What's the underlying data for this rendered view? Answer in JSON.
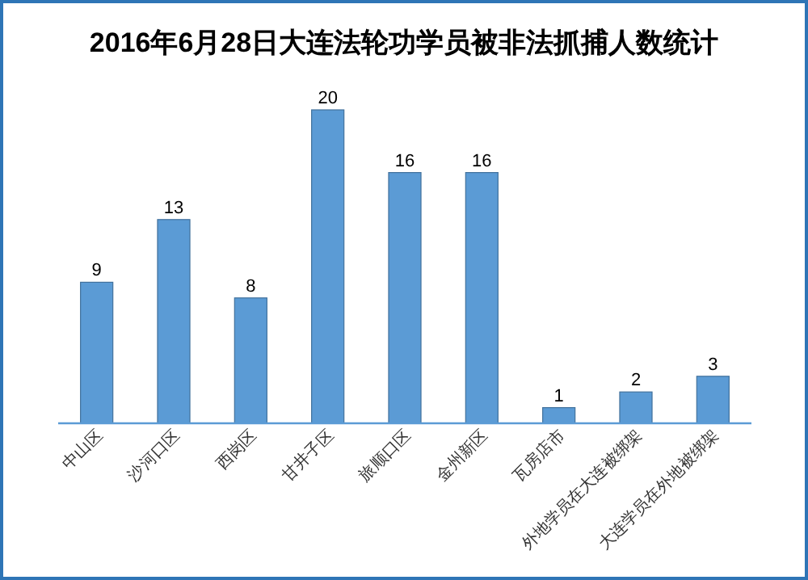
{
  "chart_data": {
    "type": "bar",
    "title": "2016年6月28日大连法轮功学员被非法抓捕人数统计",
    "categories": [
      "中山区",
      "沙河口区",
      "西岗区",
      "甘井子区",
      "旅顺口区",
      "金州新区",
      "瓦房店市",
      "外地学员在大连被绑架",
      "大连学员在外地被绑架"
    ],
    "values": [
      9,
      13,
      8,
      20,
      16,
      16,
      1,
      2,
      3
    ],
    "color": "#5b9bd5",
    "data_labels": true,
    "tick_labels": "x"
  }
}
